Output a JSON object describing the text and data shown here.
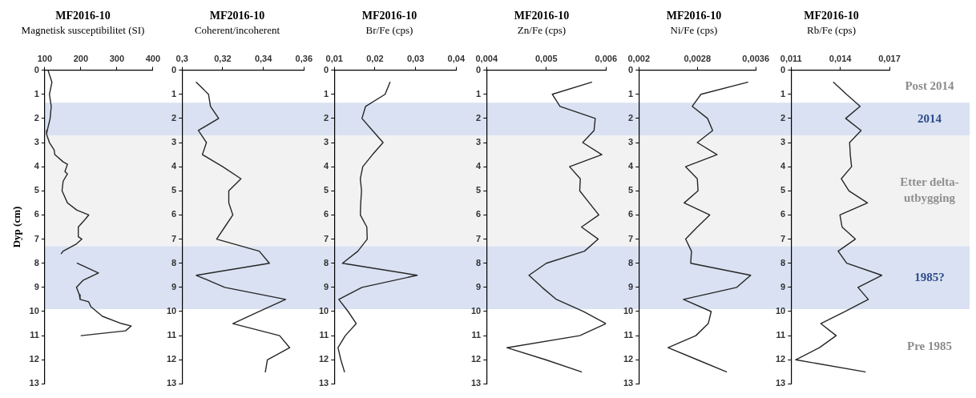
{
  "chart_data": [
    {
      "type": "line",
      "title": "MF2016-10",
      "subtitle": "Magnetisk susceptibilitet (SI)",
      "ylabel": "Dyp (cm)",
      "marker": "none",
      "line_style": "solid",
      "xlim": [
        100,
        400
      ],
      "xticks": [
        100,
        200,
        300,
        400
      ],
      "ylim": [
        13,
        0
      ],
      "yticks": [
        0,
        1,
        2,
        3,
        4,
        5,
        6,
        7,
        8,
        9,
        10,
        11,
        12,
        13
      ],
      "series": [
        {
          "color": "#262626",
          "x": [
            109,
            120,
            113,
            118,
            115,
            107,
            105,
            113,
            126,
            128,
            151,
            163,
            156,
            163,
            151,
            148,
            163,
            189,
            222,
            211,
            193,
            193,
            203,
            188,
            151,
            146,
            null,
            190,
            249,
            207,
            188,
            196,
            198,
            222,
            228,
            260,
            313,
            340,
            324,
            201
          ],
          "values": [
            0,
            0.5,
            1,
            1.5,
            2,
            2.5,
            2.65,
            3,
            3.3,
            3.5,
            3.8,
            3.9,
            4.2,
            4.3,
            4.6,
            5,
            5.5,
            5.8,
            6,
            6.2,
            6.5,
            6.9,
            7,
            7.2,
            7.5,
            7.6,
            null,
            8,
            8.4,
            8.7,
            9,
            9.3,
            9.5,
            9.6,
            9.8,
            10.2,
            10.5,
            10.6,
            10.8,
            11
          ]
        }
      ],
      "bands": [
        {
          "axis": "y",
          "from": 1.35,
          "to": 2.7,
          "color": "#d9e1f2"
        },
        {
          "axis": "y",
          "from": 2.7,
          "to": 7.3,
          "color": "#f2f2f2"
        },
        {
          "axis": "y",
          "from": 7.3,
          "to": 9.9,
          "color": "#d9e1f2"
        }
      ]
    },
    {
      "type": "line",
      "title": "MF2016-10",
      "subtitle": "Coherent/incoherent",
      "marker": "none",
      "line_style": "solid",
      "xlim": [
        0.3,
        0.36
      ],
      "xticks": [
        {
          "value": 0.3,
          "label": "0,3"
        },
        {
          "value": 0.32,
          "label": "0,32"
        },
        {
          "value": 0.34,
          "label": "0,34"
        },
        {
          "value": 0.36,
          "label": "0,36"
        }
      ],
      "ylim": [
        13,
        0
      ],
      "yticks": [
        0,
        1,
        2,
        3,
        4,
        5,
        6,
        7,
        8,
        9,
        10,
        11,
        12,
        13
      ],
      "series": [
        {
          "color": "#262626",
          "x": [
            0.307,
            0.313,
            0.314,
            0.318,
            0.308,
            0.312,
            0.31,
            0.32,
            0.329,
            0.323,
            0.323,
            0.325,
            0.321,
            0.317,
            0.338,
            0.343,
            0.307,
            0.321,
            0.351,
            0.338,
            0.325,
            0.348,
            0.353,
            0.342,
            0.341
          ],
          "values": [
            0.5,
            1,
            1.5,
            2,
            2.5,
            3,
            3.5,
            4,
            4.5,
            5,
            5.5,
            6,
            6.5,
            7,
            7.5,
            8,
            8.5,
            9,
            9.5,
            10,
            10.5,
            11,
            11.5,
            12,
            12.5
          ]
        }
      ],
      "bands": [
        {
          "axis": "y",
          "from": 1.35,
          "to": 2.7,
          "color": "#d9e1f2"
        },
        {
          "axis": "y",
          "from": 2.7,
          "to": 7.3,
          "color": "#f2f2f2"
        },
        {
          "axis": "y",
          "from": 7.3,
          "to": 9.9,
          "color": "#d9e1f2"
        }
      ]
    },
    {
      "type": "line",
      "title": "MF2016-10",
      "subtitle": "Br/Fe (cps)",
      "marker": "none",
      "line_style": "solid",
      "xlim": [
        0.01,
        0.04
      ],
      "xticks": [
        {
          "value": 0.01,
          "label": "0,01"
        },
        {
          "value": 0.02,
          "label": "0,02"
        },
        {
          "value": 0.03,
          "label": "0,03"
        },
        {
          "value": 0.04,
          "label": "0,04"
        }
      ],
      "ylim": [
        13,
        0
      ],
      "yticks": [
        0,
        1,
        2,
        3,
        4,
        5,
        6,
        7,
        8,
        9,
        10,
        11,
        12,
        13
      ],
      "series": [
        {
          "color": "#262626",
          "x": [
            0.0237,
            0.0225,
            0.0177,
            0.0168,
            0.0194,
            0.022,
            0.0194,
            0.017,
            0.0164,
            0.0167,
            0.0165,
            0.0164,
            0.018,
            0.0181,
            0.0158,
            0.012,
            0.0304,
            0.0168,
            0.0111,
            0.0134,
            0.0154,
            0.0127,
            0.0109,
            0.0116,
            0.0125
          ],
          "values": [
            0.5,
            1,
            1.5,
            2,
            2.5,
            3,
            3.5,
            4,
            4.5,
            5,
            5.5,
            6,
            6.5,
            7,
            7.5,
            8,
            8.5,
            9,
            9.5,
            10,
            10.5,
            11,
            11.5,
            12,
            12.5
          ]
        }
      ],
      "bands": [
        {
          "axis": "y",
          "from": 1.35,
          "to": 2.7,
          "color": "#d9e1f2"
        },
        {
          "axis": "y",
          "from": 2.7,
          "to": 7.3,
          "color": "#f2f2f2"
        },
        {
          "axis": "y",
          "from": 7.3,
          "to": 9.9,
          "color": "#d9e1f2"
        }
      ]
    },
    {
      "type": "line",
      "title": "MF2016-10",
      "subtitle": "Zn/Fe (cps)",
      "marker": "none",
      "line_style": "solid",
      "xlim": [
        0.004,
        0.006
      ],
      "xticks": [
        {
          "value": 0.004,
          "label": "0,004"
        },
        {
          "value": 0.005,
          "label": "0,005"
        },
        {
          "value": 0.006,
          "label": "0,006"
        }
      ],
      "ylim": [
        13,
        0
      ],
      "yticks": [
        0,
        1,
        2,
        3,
        4,
        5,
        6,
        7,
        8,
        9,
        10,
        11,
        12,
        13
      ],
      "series": [
        {
          "color": "#262626",
          "x": [
            0.00576,
            0.0051,
            0.00523,
            0.00582,
            0.0058,
            0.00561,
            0.00593,
            0.00539,
            0.00557,
            0.00556,
            0.00572,
            0.00588,
            0.00559,
            0.00587,
            0.00564,
            0.005,
            0.00471,
            0.00493,
            0.00517,
            0.00562,
            0.006,
            0.00556,
            0.00434,
            0.00499,
            0.00559
          ],
          "values": [
            0.5,
            1,
            1.5,
            2,
            2.5,
            3,
            3.5,
            4,
            4.5,
            5,
            5.5,
            6,
            6.5,
            7,
            7.5,
            8,
            8.5,
            9,
            9.5,
            10,
            10.5,
            11,
            11.5,
            12,
            12.5
          ]
        }
      ],
      "bands": [
        {
          "axis": "y",
          "from": 1.35,
          "to": 2.7,
          "color": "#d9e1f2"
        },
        {
          "axis": "y",
          "from": 2.7,
          "to": 7.3,
          "color": "#f2f2f2"
        },
        {
          "axis": "y",
          "from": 7.3,
          "to": 9.9,
          "color": "#d9e1f2"
        }
      ]
    },
    {
      "type": "line",
      "title": "MF2016-10",
      "subtitle": "Ni/Fe (cps)",
      "marker": "none",
      "line_style": "solid",
      "xlim": [
        0.002,
        0.0036
      ],
      "xticks": [
        {
          "value": 0.002,
          "label": "0,002"
        },
        {
          "value": 0.0028,
          "label": "0,0028"
        },
        {
          "value": 0.0036,
          "label": "0,0036"
        }
      ],
      "ylim": [
        13,
        0
      ],
      "yticks": [
        0,
        1,
        2,
        3,
        4,
        5,
        6,
        7,
        8,
        9,
        10,
        11,
        12,
        13
      ],
      "series": [
        {
          "color": "#262626",
          "x": [
            0.00349,
            0.00285,
            0.00273,
            0.00294,
            0.00301,
            0.0028,
            0.00307,
            0.00264,
            0.0028,
            0.00281,
            0.00262,
            0.00297,
            0.0028,
            0.00264,
            0.00272,
            0.00271,
            0.00353,
            0.00334,
            0.00261,
            0.00299,
            0.00295,
            0.00278,
            0.0024,
            0.0028,
            0.0032
          ],
          "values": [
            0.5,
            1,
            1.5,
            2,
            2.5,
            3,
            3.5,
            4,
            4.5,
            5,
            5.5,
            6,
            6.5,
            7,
            7.5,
            8,
            8.5,
            9,
            9.5,
            10,
            10.5,
            11,
            11.5,
            12,
            12.5
          ]
        }
      ],
      "bands": [
        {
          "axis": "y",
          "from": 1.35,
          "to": 2.7,
          "color": "#d9e1f2"
        },
        {
          "axis": "y",
          "from": 2.7,
          "to": 7.3,
          "color": "#f2f2f2"
        },
        {
          "axis": "y",
          "from": 7.3,
          "to": 9.9,
          "color": "#d9e1f2"
        }
      ]
    },
    {
      "type": "line",
      "title": "MF2016-10",
      "subtitle": "Rb/Fe (cps)",
      "marker": "none",
      "line_style": "solid",
      "xlim": [
        0.011,
        0.017
      ],
      "xticks": [
        {
          "value": 0.011,
          "label": "0,011"
        },
        {
          "value": 0.014,
          "label": "0,014"
        },
        {
          "value": 0.017,
          "label": "0,017"
        }
      ],
      "ylim": [
        13,
        0
      ],
      "yticks": [
        0,
        1,
        2,
        3,
        4,
        5,
        6,
        7,
        8,
        9,
        10,
        11,
        12,
        13
      ],
      "series": [
        {
          "color": "#262626",
          "x": [
            0.01359,
            0.01438,
            0.01521,
            0.01433,
            0.01527,
            0.01457,
            0.01461,
            0.01469,
            0.01406,
            0.01453,
            0.01566,
            0.01398,
            0.01411,
            0.01492,
            0.01387,
            0.01439,
            0.01653,
            0.01508,
            0.01571,
            0.0143,
            0.01281,
            0.01375,
            0.01273,
            0.01128,
            0.01552
          ],
          "values": [
            0.5,
            1,
            1.5,
            2,
            2.5,
            3,
            3.5,
            4,
            4.5,
            5,
            5.5,
            6,
            6.5,
            7,
            7.5,
            8,
            8.5,
            9,
            9.5,
            10,
            10.5,
            11,
            11.5,
            12,
            12.5
          ]
        }
      ],
      "bands": [
        {
          "axis": "y",
          "from": 1.35,
          "to": 2.7,
          "color": "#d9e1f2",
          "label": "2014"
        },
        {
          "axis": "y",
          "from": 2.7,
          "to": 7.3,
          "color": "#f2f2f2",
          "label": "Etter delta-utbygging"
        },
        {
          "axis": "y",
          "from": 7.3,
          "to": 9.9,
          "color": "#d9e1f2",
          "label": "1985?"
        }
      ],
      "annotations": [
        "Post 2014",
        "Pre 1985"
      ]
    }
  ]
}
